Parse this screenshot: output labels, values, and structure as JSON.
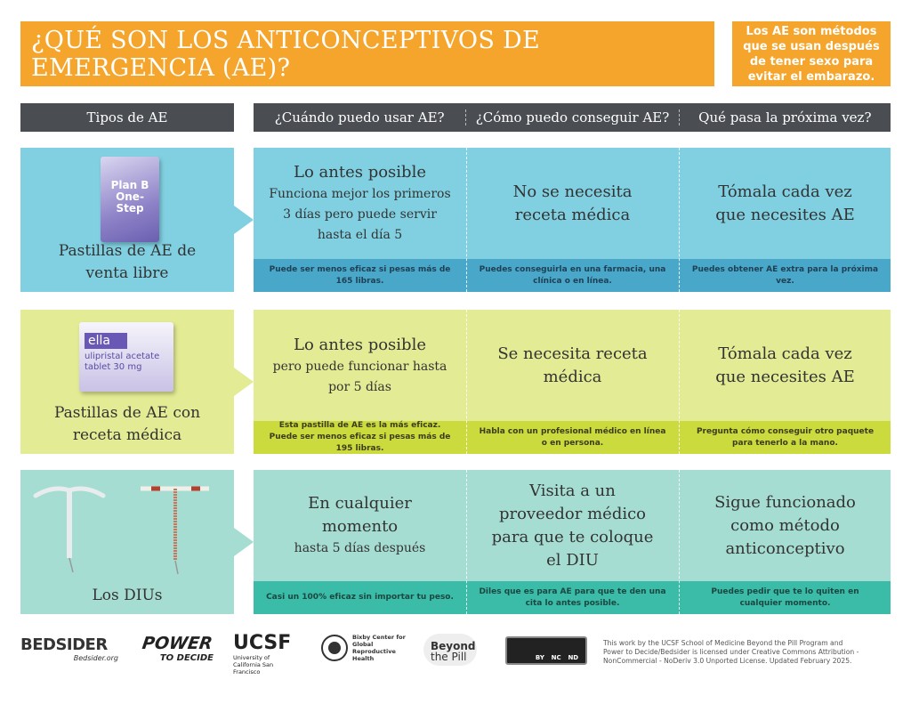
{
  "header": {
    "title": "¿QUÉ SON LOS ANTICONCEPTIVOS DE EMERGENCIA (AE)?",
    "note": "Los AE son métodos que se usan después de tener sexo para evitar el embarazo."
  },
  "columns": [
    "Tipos de AE",
    "¿Cuándo puedo usar AE?",
    "¿Cómo puedo conseguir AE?",
    "Qué pasa la próxima vez?"
  ],
  "rows": [
    {
      "type": "Pastillas de AE de venta libre",
      "product": "Plan B One-Step",
      "cells": [
        {
          "main": "Lo antes posible",
          "sub": "Funciona mejor los primeros 3 días pero puede servir hasta el día 5",
          "note": "Puede ser menos eficaz si pesas más de 165 libras."
        },
        {
          "main": "No se necesita receta médica",
          "note": "Puedes conseguirla en una farmacia, una clínica o en línea."
        },
        {
          "main": "Tómala cada vez que necesites AE",
          "note": "Puedes obtener AE extra para la próxima vez."
        }
      ]
    },
    {
      "type": "Pastillas de AE con receta médica",
      "product": "ella",
      "product_detail": "ulipristal acetate tablet 30 mg",
      "cells": [
        {
          "main": "Lo antes posible",
          "sub": "pero puede funcionar hasta por 5 días",
          "note": "Esta pastilla de AE es la más eficaz. Puede ser menos eficaz si pesas más de 195 libras."
        },
        {
          "main": "Se necesita receta médica",
          "note": "Habla con un profesional médico en línea o en persona."
        },
        {
          "main": "Tómala cada vez que necesites AE",
          "note": "Pregunta cómo conseguir otro paquete para tenerlo a la mano."
        }
      ]
    },
    {
      "type": "Los DIUs",
      "cells": [
        {
          "main": "En cualquier momento",
          "sub": "hasta 5 días después",
          "note": "Casi un 100% eficaz sin importar tu peso."
        },
        {
          "main": "Visita a un proveedor médico para que te coloque el DIU",
          "note": "Diles que es para AE para que te den una cita lo antes posible."
        },
        {
          "main": "Sigue funcionado como método anticonceptivo",
          "note": "Puedes pedir que te lo quiten en cualquier momento."
        }
      ]
    }
  ],
  "footer": {
    "bedsider": "BEDSIDER",
    "bedsider_url": "Bedsider.org",
    "power": "POWER",
    "to_decide": "TO DECIDE",
    "ucsf": "UCSF",
    "ucsf_name": "University of California San Francisco",
    "bixby": "Bixby Center for Global Reproductive Health",
    "beyond": "Beyond",
    "the_pill": "the Pill",
    "cc": [
      "BY",
      "NC",
      "ND"
    ],
    "license": "This work by the UCSF School of Medicine Beyond the Pill Program and Power to Decide/Bedsider is licensed under Creative Commons Attribution - NonCommercial - NoDeriv 3.0 Unported License. Updated February 2025."
  }
}
